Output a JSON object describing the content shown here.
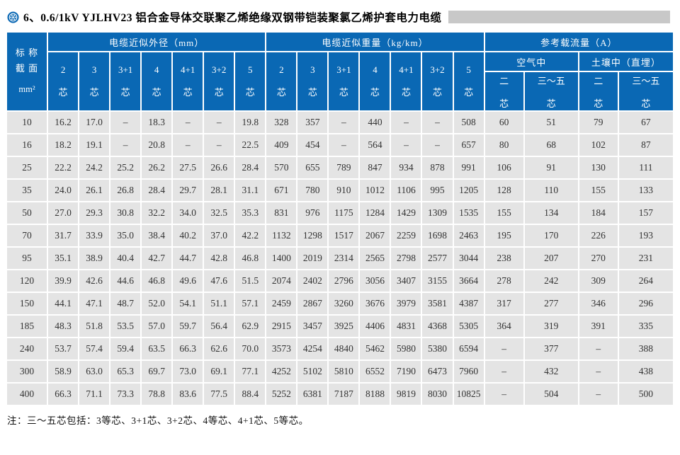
{
  "page": {
    "title": "6、0.6/1kV YJLHV23 铝合金导体交联聚乙烯绝缘双钢带铠装聚氯乙烯护套电力电缆",
    "note": "注：三～五芯包括：3等芯、3+1芯、3+2芯、4等芯、4+1芯、5等芯。"
  },
  "colors": {
    "header_blue": "#0a68b4",
    "row_gray": "#e4e4e4",
    "bar_gray": "#c8c8c8"
  },
  "table": {
    "stub": {
      "line1": "标 称",
      "line2": "截 面",
      "unit": "mm²"
    },
    "core_suffix": "芯",
    "groups": [
      {
        "label": "电缆近似外径（mm）",
        "columns": [
          "2",
          "3",
          "3+1",
          "4",
          "4+1",
          "3+2",
          "5"
        ]
      },
      {
        "label": "电缆近似重量（kg/km）",
        "columns": [
          "2",
          "3",
          "3+1",
          "4",
          "4+1",
          "3+2",
          "5"
        ]
      },
      {
        "label": "参考载流量（A）",
        "subgroups": [
          {
            "label": "空气中",
            "columns": [
              "二",
              "三～五"
            ]
          },
          {
            "label": "土壤中（直埋）",
            "columns": [
              "二",
              "三～五"
            ]
          }
        ]
      }
    ],
    "rows": [
      {
        "size": "10",
        "diameter": [
          "16.2",
          "17.0",
          "–",
          "18.3",
          "–",
          "–",
          "19.8"
        ],
        "weight": [
          "328",
          "357",
          "–",
          "440",
          "–",
          "–",
          "508"
        ],
        "ampacity": [
          "60",
          "51",
          "79",
          "67"
        ]
      },
      {
        "size": "16",
        "diameter": [
          "18.2",
          "19.1",
          "–",
          "20.8",
          "–",
          "–",
          "22.5"
        ],
        "weight": [
          "409",
          "454",
          "–",
          "564",
          "–",
          "–",
          "657"
        ],
        "ampacity": [
          "80",
          "68",
          "102",
          "87"
        ]
      },
      {
        "size": "25",
        "diameter": [
          "22.2",
          "24.2",
          "25.2",
          "26.2",
          "27.5",
          "26.6",
          "28.4"
        ],
        "weight": [
          "570",
          "655",
          "789",
          "847",
          "934",
          "878",
          "991"
        ],
        "ampacity": [
          "106",
          "91",
          "130",
          "111"
        ]
      },
      {
        "size": "35",
        "diameter": [
          "24.0",
          "26.1",
          "26.8",
          "28.4",
          "29.7",
          "28.1",
          "31.1"
        ],
        "weight": [
          "671",
          "780",
          "910",
          "1012",
          "1106",
          "995",
          "1205"
        ],
        "ampacity": [
          "128",
          "110",
          "155",
          "133"
        ]
      },
      {
        "size": "50",
        "diameter": [
          "27.0",
          "29.3",
          "30.8",
          "32.2",
          "34.0",
          "32.5",
          "35.3"
        ],
        "weight": [
          "831",
          "976",
          "1175",
          "1284",
          "1429",
          "1309",
          "1535"
        ],
        "ampacity": [
          "155",
          "134",
          "184",
          "157"
        ]
      },
      {
        "size": "70",
        "diameter": [
          "31.7",
          "33.9",
          "35.0",
          "38.4",
          "40.2",
          "37.0",
          "42.2"
        ],
        "weight": [
          "1132",
          "1298",
          "1517",
          "2067",
          "2259",
          "1698",
          "2463"
        ],
        "ampacity": [
          "195",
          "170",
          "226",
          "193"
        ]
      },
      {
        "size": "95",
        "diameter": [
          "35.1",
          "38.9",
          "40.4",
          "42.7",
          "44.7",
          "42.8",
          "46.8"
        ],
        "weight": [
          "1400",
          "2019",
          "2314",
          "2565",
          "2798",
          "2577",
          "3044"
        ],
        "ampacity": [
          "238",
          "207",
          "270",
          "231"
        ]
      },
      {
        "size": "120",
        "diameter": [
          "39.9",
          "42.6",
          "44.6",
          "46.8",
          "49.6",
          "47.6",
          "51.5"
        ],
        "weight": [
          "2074",
          "2402",
          "2796",
          "3056",
          "3407",
          "3155",
          "3664"
        ],
        "ampacity": [
          "278",
          "242",
          "309",
          "264"
        ]
      },
      {
        "size": "150",
        "diameter": [
          "44.1",
          "47.1",
          "48.7",
          "52.0",
          "54.1",
          "51.1",
          "57.1"
        ],
        "weight": [
          "2459",
          "2867",
          "3260",
          "3676",
          "3979",
          "3581",
          "4387"
        ],
        "ampacity": [
          "317",
          "277",
          "346",
          "296"
        ]
      },
      {
        "size": "185",
        "diameter": [
          "48.3",
          "51.8",
          "53.5",
          "57.0",
          "59.7",
          "56.4",
          "62.9"
        ],
        "weight": [
          "2915",
          "3457",
          "3925",
          "4406",
          "4831",
          "4368",
          "5305"
        ],
        "ampacity": [
          "364",
          "319",
          "391",
          "335"
        ]
      },
      {
        "size": "240",
        "diameter": [
          "53.7",
          "57.4",
          "59.4",
          "63.5",
          "66.3",
          "62.6",
          "70.0"
        ],
        "weight": [
          "3573",
          "4254",
          "4840",
          "5462",
          "5980",
          "5380",
          "6594"
        ],
        "ampacity": [
          "–",
          "377",
          "–",
          "388"
        ]
      },
      {
        "size": "300",
        "diameter": [
          "58.9",
          "63.0",
          "65.3",
          "69.7",
          "73.0",
          "69.1",
          "77.1"
        ],
        "weight": [
          "4252",
          "5102",
          "5810",
          "6552",
          "7190",
          "6473",
          "7960"
        ],
        "ampacity": [
          "–",
          "432",
          "–",
          "438"
        ]
      },
      {
        "size": "400",
        "diameter": [
          "66.3",
          "71.1",
          "73.3",
          "78.8",
          "83.6",
          "77.5",
          "88.4"
        ],
        "weight": [
          "5252",
          "6381",
          "7187",
          "8188",
          "9819",
          "8030",
          "10825"
        ],
        "ampacity": [
          "–",
          "504",
          "–",
          "500"
        ]
      }
    ]
  }
}
